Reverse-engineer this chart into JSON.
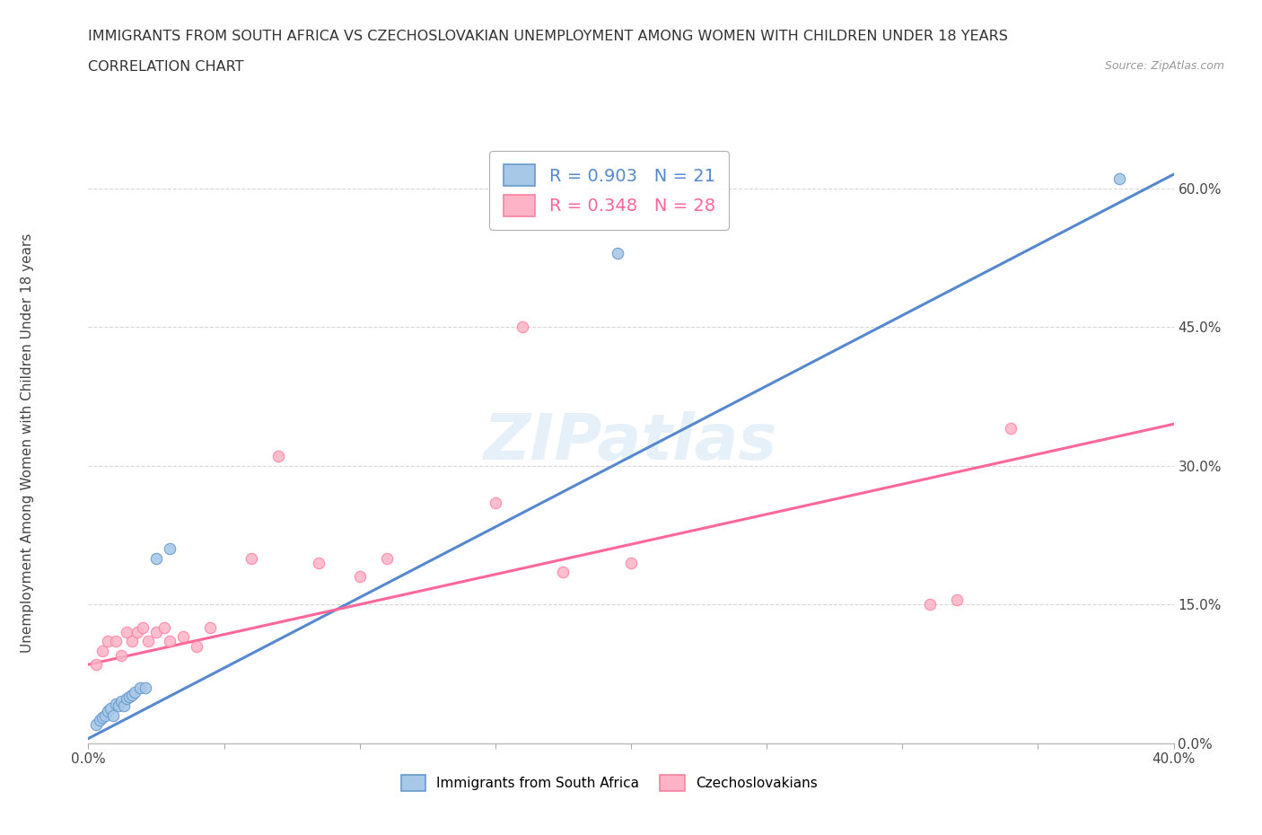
{
  "title_line1": "IMMIGRANTS FROM SOUTH AFRICA VS CZECHOSLOVAKIAN UNEMPLOYMENT AMONG WOMEN WITH CHILDREN UNDER 18 YEARS",
  "title_line2": "CORRELATION CHART",
  "source_text": "Source: ZipAtlas.com",
  "ylabel": "Unemployment Among Women with Children Under 18 years",
  "xlim": [
    0.0,
    0.4
  ],
  "ylim": [
    0.0,
    0.65
  ],
  "xticks": [
    0.0,
    0.05,
    0.1,
    0.15,
    0.2,
    0.25,
    0.3,
    0.35,
    0.4
  ],
  "yticks": [
    0.0,
    0.15,
    0.3,
    0.45,
    0.6
  ],
  "ytick_labels": [
    "0.0%",
    "15.0%",
    "30.0%",
    "45.0%",
    "60.0%"
  ],
  "xtick_labels": [
    "0.0%",
    "",
    "",
    "",
    "",
    "",
    "",
    "",
    "40.0%"
  ],
  "blue_color": "#A8C8E8",
  "pink_color": "#FFB3C6",
  "blue_edge_color": "#6699CC",
  "pink_edge_color": "#FF80A0",
  "blue_line_color": "#5588CC",
  "pink_line_color": "#FF6699",
  "legend_R_blue": "0.903",
  "legend_N_blue": "21",
  "legend_R_pink": "0.348",
  "legend_N_pink": "28",
  "watermark": "ZIPatlas",
  "blue_scatter_x": [
    0.003,
    0.004,
    0.005,
    0.006,
    0.007,
    0.008,
    0.009,
    0.01,
    0.011,
    0.012,
    0.013,
    0.014,
    0.015,
    0.016,
    0.017,
    0.019,
    0.021,
    0.025,
    0.03,
    0.195,
    0.38
  ],
  "blue_scatter_y": [
    0.02,
    0.025,
    0.028,
    0.03,
    0.035,
    0.038,
    0.03,
    0.042,
    0.04,
    0.045,
    0.04,
    0.048,
    0.05,
    0.052,
    0.055,
    0.06,
    0.06,
    0.2,
    0.21,
    0.53,
    0.61
  ],
  "pink_scatter_x": [
    0.003,
    0.005,
    0.007,
    0.01,
    0.012,
    0.014,
    0.016,
    0.018,
    0.02,
    0.022,
    0.025,
    0.028,
    0.03,
    0.035,
    0.04,
    0.045,
    0.06,
    0.07,
    0.085,
    0.1,
    0.11,
    0.15,
    0.16,
    0.175,
    0.2,
    0.31,
    0.32,
    0.34
  ],
  "pink_scatter_y": [
    0.085,
    0.1,
    0.11,
    0.11,
    0.095,
    0.12,
    0.11,
    0.12,
    0.125,
    0.11,
    0.12,
    0.125,
    0.11,
    0.115,
    0.105,
    0.125,
    0.2,
    0.31,
    0.195,
    0.18,
    0.2,
    0.26,
    0.45,
    0.185,
    0.195,
    0.15,
    0.155,
    0.34
  ],
  "blue_trendline_x": [
    0.0,
    0.4
  ],
  "blue_trendline_y": [
    0.005,
    0.615
  ],
  "pink_trendline_x": [
    0.0,
    0.4
  ],
  "pink_trendline_y": [
    0.085,
    0.345
  ],
  "bg_color": "#FFFFFF",
  "grid_color": "#CCCCCC"
}
